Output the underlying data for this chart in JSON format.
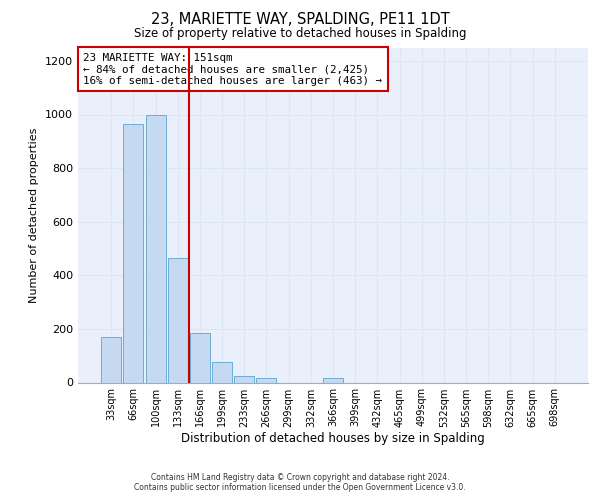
{
  "title": "23, MARIETTE WAY, SPALDING, PE11 1DT",
  "subtitle": "Size of property relative to detached houses in Spalding",
  "xlabel": "Distribution of detached houses by size in Spalding",
  "ylabel": "Number of detached properties",
  "bar_labels": [
    "33sqm",
    "66sqm",
    "100sqm",
    "133sqm",
    "166sqm",
    "199sqm",
    "233sqm",
    "266sqm",
    "299sqm",
    "332sqm",
    "366sqm",
    "399sqm",
    "432sqm",
    "465sqm",
    "499sqm",
    "532sqm",
    "565sqm",
    "598sqm",
    "632sqm",
    "665sqm",
    "698sqm"
  ],
  "bar_values": [
    170,
    965,
    1000,
    465,
    185,
    75,
    25,
    15,
    0,
    0,
    15,
    0,
    0,
    0,
    0,
    0,
    0,
    0,
    0,
    0,
    0
  ],
  "bar_color": "#c5d9f1",
  "bar_edge_color": "#6baed6",
  "vline_x": 3.5,
  "vline_color": "#cc0000",
  "ylim": [
    0,
    1250
  ],
  "yticks": [
    0,
    200,
    400,
    600,
    800,
    1000,
    1200
  ],
  "annotation_title": "23 MARIETTE WAY: 151sqm",
  "annotation_line1": "← 84% of detached houses are smaller (2,425)",
  "annotation_line2": "16% of semi-detached houses are larger (463) →",
  "annotation_box_color": "#ffffff",
  "annotation_box_edge": "#cc0000",
  "footer_line1": "Contains HM Land Registry data © Crown copyright and database right 2024.",
  "footer_line2": "Contains public sector information licensed under the Open Government Licence v3.0.",
  "background_color": "#ffffff",
  "grid_color": "#dce6f5",
  "plot_bg_color": "#eaf0fb"
}
